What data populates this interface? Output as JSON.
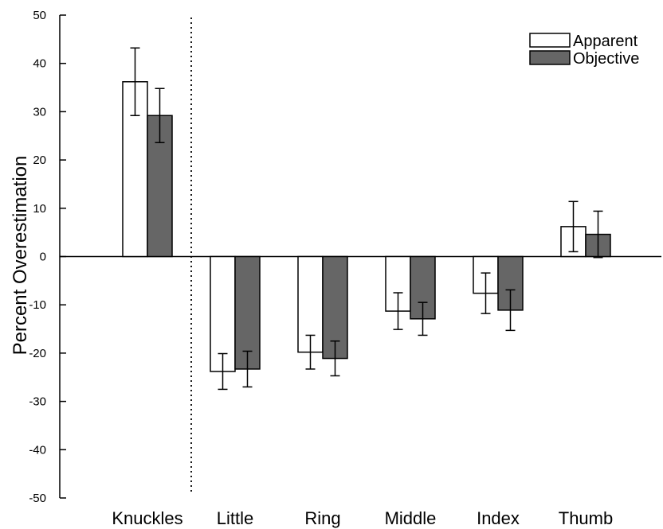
{
  "chart_data": {
    "type": "bar",
    "title": "",
    "xlabel": "",
    "ylabel": "Percent Overestimation",
    "ylim": [
      -50,
      50
    ],
    "yticks": [
      50,
      40,
      30,
      20,
      10,
      0,
      -10,
      -20,
      -30,
      -40,
      -50
    ],
    "categories": [
      "Knuckles",
      "Little",
      "Ring",
      "Middle",
      "Index",
      "Thumb"
    ],
    "series": [
      {
        "name": "Apparent",
        "color": "#ffffff",
        "values": [
          36.2,
          -23.8,
          -19.8,
          -11.3,
          -7.6,
          6.2
        ],
        "errors": [
          7.0,
          3.7,
          3.5,
          3.8,
          4.2,
          5.2
        ]
      },
      {
        "name": "Objective",
        "color": "#666666",
        "values": [
          29.2,
          -23.3,
          -21.1,
          -12.9,
          -11.1,
          4.6
        ],
        "errors": [
          5.6,
          3.7,
          3.6,
          3.4,
          4.2,
          4.8
        ]
      }
    ],
    "divider_after_category": "Knuckles",
    "grid": false,
    "legend_position": "top-right"
  }
}
